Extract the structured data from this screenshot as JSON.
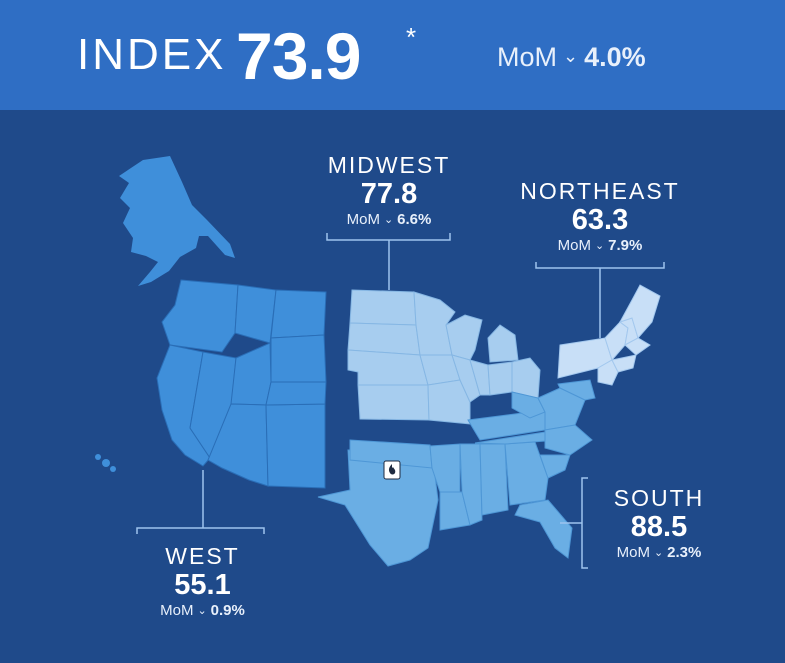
{
  "header": {
    "label": "INDEX",
    "value": "73.9",
    "asterisk": "*",
    "mom_label": "MoM",
    "mom_direction_icon": "chevron-down-icon",
    "mom_value": "4.0%"
  },
  "regions": {
    "midwest": {
      "name": "MIDWEST",
      "value": "77.8",
      "mom_label": "MoM",
      "mom_value": "6.6%",
      "color": "#a7cdef"
    },
    "northeast": {
      "name": "NORTHEAST",
      "value": "63.3",
      "mom_label": "MoM",
      "mom_value": "7.9%",
      "color": "#c8dff7"
    },
    "south": {
      "name": "SOUTH",
      "value": "88.5",
      "mom_label": "MoM",
      "mom_value": "2.3%",
      "color": "#6aaee4"
    },
    "west": {
      "name": "WEST",
      "value": "55.1",
      "mom_label": "MoM",
      "mom_value": "0.9%",
      "color": "#3f8fda"
    }
  },
  "colors": {
    "background": "#1f4a8a",
    "header_bar": "#2f6ec4",
    "leader_line": "#9dc3ee"
  },
  "marker": {
    "icon": "flame-logo-icon"
  }
}
